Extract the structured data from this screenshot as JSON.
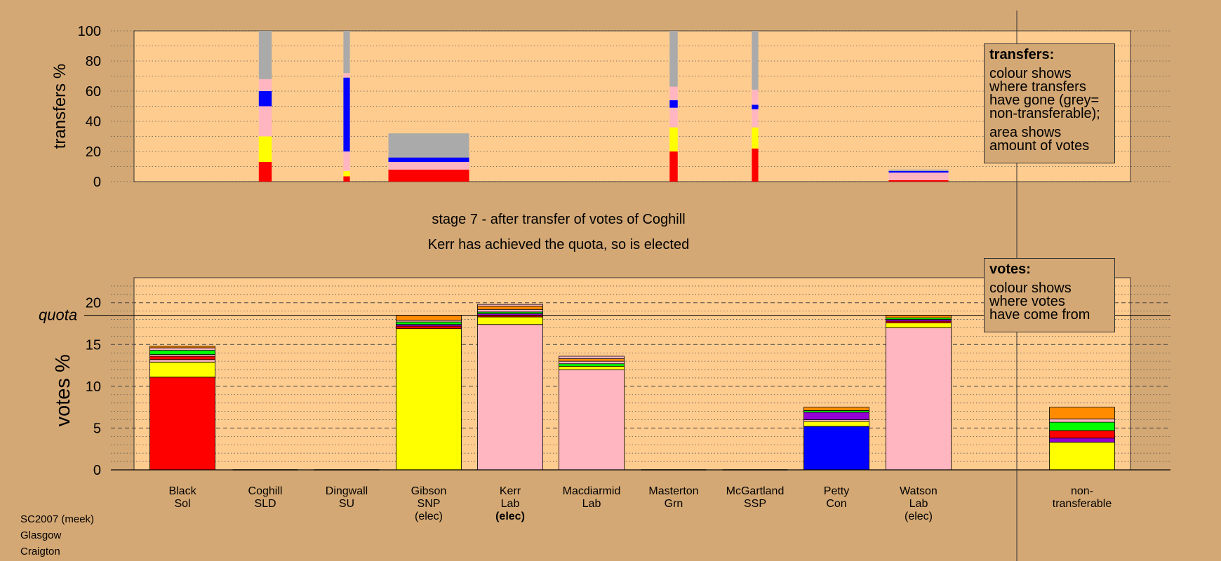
{
  "chart_data": [
    {
      "type": "bar",
      "name": "transfers",
      "ylabel": "transfers %",
      "ylim": [
        0,
        100
      ],
      "yticks": [
        0,
        20,
        40,
        60,
        80,
        100
      ],
      "grid": "dotted every 10",
      "note": "bar width proportional to amount of transferred votes",
      "bars": [
        {
          "candidate": "Coghill",
          "width_share": 0.16,
          "segments": [
            {
              "color": "#ff0000",
              "value": 13
            },
            {
              "color": "#ffff00",
              "value": 17
            },
            {
              "color": "#ffb6c1",
              "value": 20
            },
            {
              "color": "#0000ff",
              "value": 10
            },
            {
              "color": "#ffb6c1",
              "value": 8
            },
            {
              "color": "#aaaaaa",
              "value": 32
            }
          ]
        },
        {
          "candidate": "Dingwall",
          "width_share": 0.08,
          "segments": [
            {
              "color": "#ff0000",
              "value": 3.5
            },
            {
              "color": "#ffff00",
              "value": 3.5
            },
            {
              "color": "#ffb6c1",
              "value": 13
            },
            {
              "color": "#0000ff",
              "value": 49
            },
            {
              "color": "#ffb6c1",
              "value": 3
            },
            {
              "color": "#aaaaaa",
              "value": 28
            }
          ]
        },
        {
          "candidate": "Gibson",
          "width_share": 1.0,
          "segments": [
            {
              "color": "#ff0000",
              "value": 8
            },
            {
              "color": "#ffb6c1",
              "value": 5
            },
            {
              "color": "#0000ff",
              "value": 3
            },
            {
              "color": "#aaaaaa",
              "value": 16
            }
          ]
        },
        {
          "candidate": "Masterton",
          "width_share": 0.1,
          "segments": [
            {
              "color": "#ff0000",
              "value": 20
            },
            {
              "color": "#ffff00",
              "value": 16
            },
            {
              "color": "#ffb6c1",
              "value": 13
            },
            {
              "color": "#0000ff",
              "value": 5
            },
            {
              "color": "#ffb6c1",
              "value": 9
            },
            {
              "color": "#aaaaaa",
              "value": 37
            }
          ]
        },
        {
          "candidate": "McGartland",
          "width_share": 0.08,
          "segments": [
            {
              "color": "#ff0000",
              "value": 22
            },
            {
              "color": "#ffff00",
              "value": 14
            },
            {
              "color": "#ffb6c1",
              "value": 12
            },
            {
              "color": "#0000ff",
              "value": 3
            },
            {
              "color": "#ffb6c1",
              "value": 10
            },
            {
              "color": "#aaaaaa",
              "value": 39
            }
          ]
        },
        {
          "candidate": "Watson",
          "width_share": 0.74,
          "segments": [
            {
              "color": "#ff0000",
              "value": 1
            },
            {
              "color": "#ffb6c1",
              "value": 5
            },
            {
              "color": "#0000ff",
              "value": 1
            },
            {
              "color": "#aaaaaa",
              "value": 1
            }
          ]
        }
      ]
    },
    {
      "type": "bar",
      "name": "votes",
      "ylabel": "votes %",
      "ylim": [
        0,
        23
      ],
      "yticks": [
        0,
        5,
        10,
        15,
        20
      ],
      "quota": 18.5,
      "quota_label": "quota",
      "categories": [
        {
          "name": "Black",
          "party": "Sol",
          "status": "",
          "bold": false
        },
        {
          "name": "Coghill",
          "party": "SLD",
          "status": "",
          "bold": false
        },
        {
          "name": "Dingwall",
          "party": "SU",
          "status": "",
          "bold": false
        },
        {
          "name": "Gibson",
          "party": "SNP",
          "status": "(elec)",
          "bold": false
        },
        {
          "name": "Kerr",
          "party": "Lab",
          "status": "(elec)",
          "bold": true
        },
        {
          "name": "Macdiarmid",
          "party": "Lab",
          "status": "",
          "bold": false
        },
        {
          "name": "Masterton",
          "party": "Grn",
          "status": "",
          "bold": false
        },
        {
          "name": "McGartland",
          "party": "SSP",
          "status": "",
          "bold": false
        },
        {
          "name": "Petty",
          "party": "Con",
          "status": "",
          "bold": false
        },
        {
          "name": "Watson",
          "party": "Lab",
          "status": "(elec)",
          "bold": false
        },
        {
          "name": "non-",
          "party": "transferable",
          "status": "",
          "bold": false
        }
      ],
      "stacks": [
        [
          {
            "color": "#ff0000",
            "value": 11.1
          },
          {
            "color": "#ffff00",
            "value": 1.8
          },
          {
            "color": "#ffb6c1",
            "value": 0.3
          },
          {
            "color": "#ff0000",
            "value": 0.4
          },
          {
            "color": "#ffb6c1",
            "value": 0.2
          },
          {
            "color": "#00ff00",
            "value": 0.5
          },
          {
            "color": "#ffb6c1",
            "value": 0.3
          },
          {
            "color": "#ff8c00",
            "value": 0.2
          }
        ],
        [],
        [],
        [
          {
            "color": "#ffff00",
            "value": 16.9
          },
          {
            "color": "#ff0000",
            "value": 0.3
          },
          {
            "color": "#9400d3",
            "value": 0.2
          },
          {
            "color": "#00ff00",
            "value": 0.3
          },
          {
            "color": "#ffb6c1",
            "value": 0.2
          },
          {
            "color": "#ff8c00",
            "value": 0.6
          }
        ],
        [
          {
            "color": "#ffb6c1",
            "value": 17.4
          },
          {
            "color": "#ffff00",
            "value": 0.9
          },
          {
            "color": "#ff0000",
            "value": 0.2
          },
          {
            "color": "#9400d3",
            "value": 0.2
          },
          {
            "color": "#00ff00",
            "value": 0.2
          },
          {
            "color": "#ffb6c1",
            "value": 0.3
          },
          {
            "color": "#ff8c00",
            "value": 0.4
          },
          {
            "color": "#ffb6c1",
            "value": 0.2
          }
        ],
        [
          {
            "color": "#ffb6c1",
            "value": 12.0
          },
          {
            "color": "#ffff00",
            "value": 0.4
          },
          {
            "color": "#00ff00",
            "value": 0.3
          },
          {
            "color": "#ffb6c1",
            "value": 0.3
          },
          {
            "color": "#ff8c00",
            "value": 0.3
          },
          {
            "color": "#ffb6c1",
            "value": 0.3
          }
        ],
        [],
        [],
        [
          {
            "color": "#0000ff",
            "value": 5.2
          },
          {
            "color": "#ffff00",
            "value": 0.6
          },
          {
            "color": "#ffb6c1",
            "value": 0.2
          },
          {
            "color": "#9400d3",
            "value": 0.9
          },
          {
            "color": "#00ff00",
            "value": 0.2
          },
          {
            "color": "#ff8c00",
            "value": 0.4
          }
        ],
        [
          {
            "color": "#ffb6c1",
            "value": 17.0
          },
          {
            "color": "#ffff00",
            "value": 0.6
          },
          {
            "color": "#ff0000",
            "value": 0.2
          },
          {
            "color": "#9400d3",
            "value": 0.2
          },
          {
            "color": "#00ff00",
            "value": 0.2
          },
          {
            "color": "#ff8c00",
            "value": 0.3
          }
        ],
        [
          {
            "color": "#ffff00",
            "value": 3.3
          },
          {
            "color": "#9400d3",
            "value": 0.5
          },
          {
            "color": "#ff0000",
            "value": 0.9
          },
          {
            "color": "#00ff00",
            "value": 1.0
          },
          {
            "color": "#ffb6c1",
            "value": 0.4
          },
          {
            "color": "#ff8c00",
            "value": 1.4
          }
        ]
      ]
    }
  ],
  "stage_title": "stage 7 - after transfer of votes of Coghill",
  "stage_subtitle": "Kerr has achieved the quota, so is elected",
  "legend_transfers": {
    "title": "transfers:",
    "text1": "colour shows\nwhere transfers\nhave gone (grey=\nnon-transferable);",
    "text2": "area shows\namount of votes"
  },
  "legend_votes": {
    "title": "votes:",
    "text1": "colour shows\nwhere votes\nhave come from"
  },
  "footer": {
    "line1": "SC2007 (meek)",
    "line2": "Glasgow",
    "line3": "Craigton"
  },
  "colors": {
    "background": "#d4a874",
    "plot_area": "#ffcc8f"
  }
}
